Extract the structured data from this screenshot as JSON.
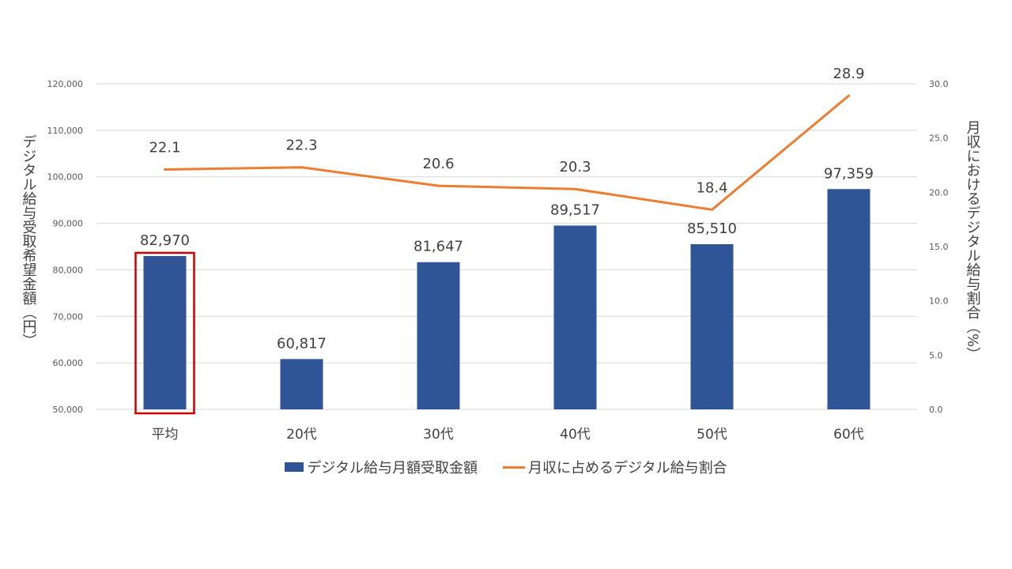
{
  "chart_data": {
    "type": "bar",
    "categories": [
      "平均",
      "20代",
      "30代",
      "40代",
      "50代",
      "60代"
    ],
    "series": [
      {
        "name": "デジタル給与月額受取金額",
        "type": "bar",
        "axis": "left",
        "color": "#2F5597",
        "values": [
          82970,
          60817,
          81647,
          89517,
          85510,
          97359
        ],
        "labels": [
          "82,970",
          "60,817",
          "81,647",
          "89,517",
          "85,510",
          "97,359"
        ]
      },
      {
        "name": "月収に占めるデジタル給与割合",
        "type": "line",
        "axis": "right",
        "color": "#ED7D31",
        "values": [
          22.1,
          22.3,
          20.6,
          20.3,
          18.4,
          28.9
        ],
        "labels": [
          "22.1",
          "22.3",
          "20.6",
          "20.3",
          "18.4",
          "28.9"
        ]
      }
    ],
    "y_left": {
      "label": "デジタル給与受取希望金額（円）",
      "ylim": [
        50000,
        120000
      ],
      "ticks": [
        "50,000",
        "60,000",
        "70,000",
        "80,000",
        "90,000",
        "100,000",
        "110,000",
        "120,000"
      ]
    },
    "y_right": {
      "label": "月収におけるデジタル給与割合（%）",
      "ylim": [
        0,
        30
      ],
      "ticks": [
        "0.0",
        "5.0",
        "10.0",
        "15.0",
        "20.0",
        "25.0",
        "30.0"
      ]
    },
    "highlight": {
      "category": "平均",
      "color": "#CC0000"
    },
    "grid": true,
    "legend": "bottom"
  }
}
